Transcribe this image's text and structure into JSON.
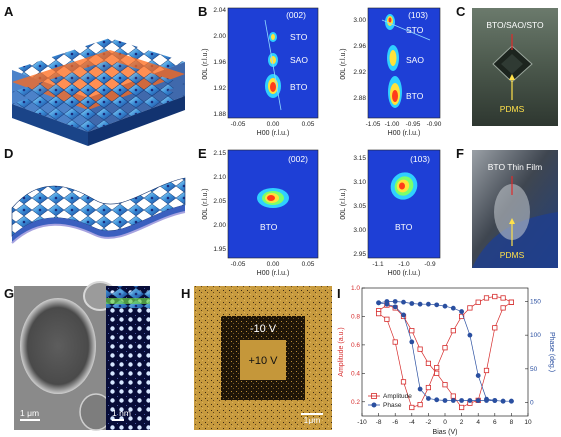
{
  "panel_letters": {
    "A": "A",
    "B": "B",
    "C": "C",
    "D": "D",
    "E": "E",
    "F": "F",
    "G": "G",
    "H": "H",
    "I": "I"
  },
  "rsm_B": {
    "left": {
      "hkl": "(002)",
      "xlabel": "H00 (r.l.u.)",
      "ylabel": "00L (r.l.u.)",
      "xticks": [
        "-0.05",
        "0.00",
        "0.05"
      ],
      "yticks": [
        "2.04",
        "2.00",
        "1.96",
        "1.92",
        "1.88"
      ],
      "peaks": [
        {
          "label": "STO",
          "h": 0.0,
          "l": 2.0
        },
        {
          "label": "SAO",
          "h": 0.0,
          "l": 1.96
        },
        {
          "label": "BTO",
          "h": 0.0,
          "l": 1.925
        }
      ]
    },
    "right": {
      "hkl": "(103)",
      "xlabel": "H00 (r.l.u.)",
      "ylabel": "00L (r.l.u.)",
      "xticks": [
        "-1.05",
        "-1.00",
        "-0.95",
        "-0.90"
      ],
      "yticks": [
        "3.00",
        "2.96",
        "2.92",
        "2.88"
      ],
      "peaks": [
        {
          "label": "STO",
          "h": -1.0,
          "l": 3.0
        },
        {
          "label": "SAO",
          "h": -0.995,
          "l": 2.94
        },
        {
          "label": "BTO",
          "h": -0.99,
          "l": 2.89
        }
      ]
    }
  },
  "rsm_E": {
    "left": {
      "hkl": "(002)",
      "xlabel": "H00 (r.l.u.)",
      "ylabel": "00L (r.l.u.)",
      "xticks": [
        "-0.05",
        "0.00",
        "0.05"
      ],
      "yticks": [
        "2.15",
        "2.10",
        "2.05",
        "2.00",
        "1.95"
      ],
      "peaks": [
        {
          "label": "BTO",
          "h": 0.0,
          "l": 2.055
        }
      ]
    },
    "right": {
      "hkl": "(103)",
      "xlabel": "H00 (r.l.u.)",
      "ylabel": "00L (r.l.u.)",
      "xticks": [
        "-1.1",
        "-1.0",
        "-0.9"
      ],
      "yticks": [
        "3.15",
        "3.10",
        "3.05",
        "3.00",
        "2.95"
      ],
      "peaks": [
        {
          "label": "BTO",
          "h": -1.0,
          "l": 3.09
        }
      ]
    }
  },
  "photo_C": {
    "stack_label": "BTO/SAO/STO",
    "pdms_label": "PDMS"
  },
  "photo_F": {
    "film_label": "BTO Thin Film",
    "pdms_label": "PDMS"
  },
  "stem_G": {
    "scale_left": "1 μm",
    "scale_right": "1 nm"
  },
  "pfm_H": {
    "outer_label": "-10 V",
    "inner_label": "+10 V",
    "scale": "1μm"
  },
  "chart_data": {
    "type": "scatter",
    "xlabel": "Bias (V)",
    "ylabel_left": "Amplitude (a.u.)",
    "ylabel_right": "Phase (deg.)",
    "xlim": [
      -10,
      10
    ],
    "ylim_left": [
      0.1,
      1.0
    ],
    "ylim_right": [
      -20,
      170
    ],
    "xticks": [
      "-10",
      "-8",
      "-6",
      "-4",
      "-2",
      "0",
      "2",
      "4",
      "6",
      "8",
      "10"
    ],
    "yticks_left": [
      "0.2",
      "0.4",
      "0.6",
      "0.8",
      "1.0"
    ],
    "yticks_right": [
      "0",
      "50",
      "100",
      "150"
    ],
    "series": [
      {
        "name": "Amplitude",
        "axis": "left",
        "color": "#d62c2c",
        "marker": "square",
        "x": [
          -8,
          -7,
          -6,
          -5,
          -4,
          -3,
          -2,
          -1,
          0,
          1,
          2,
          3,
          4,
          5,
          6,
          7,
          8,
          8,
          7,
          6,
          5,
          4,
          3,
          2,
          1,
          0,
          -1,
          -2,
          -3,
          -4,
          -5,
          -6,
          -7,
          -8
        ],
        "y": [
          0.84,
          0.88,
          0.86,
          0.8,
          0.7,
          0.57,
          0.47,
          0.4,
          0.32,
          0.24,
          0.16,
          0.19,
          0.21,
          0.42,
          0.72,
          0.86,
          0.9,
          0.9,
          0.93,
          0.94,
          0.93,
          0.9,
          0.86,
          0.8,
          0.7,
          0.58,
          0.44,
          0.3,
          0.18,
          0.16,
          0.34,
          0.62,
          0.78,
          0.82
        ]
      },
      {
        "name": "Phase",
        "axis": "right",
        "color": "#2a4fa0",
        "marker": "circle",
        "x": [
          -8,
          -7,
          -6,
          -5,
          -4,
          -3,
          -2,
          -1,
          0,
          1,
          2,
          3,
          4,
          5,
          6,
          7,
          8,
          8,
          7,
          6,
          5,
          4,
          3,
          2,
          1,
          0,
          -1,
          -2,
          -3,
          -4,
          -5,
          -6,
          -7,
          -8
        ],
        "y": [
          148,
          150,
          150,
          149,
          147,
          146,
          146,
          145,
          143,
          140,
          135,
          100,
          40,
          5,
          3,
          2,
          2,
          2,
          2,
          3,
          3,
          3,
          3,
          3,
          3,
          3,
          4,
          6,
          20,
          90,
          130,
          142,
          146,
          148
        ]
      }
    ],
    "legend": "bottom-left"
  }
}
